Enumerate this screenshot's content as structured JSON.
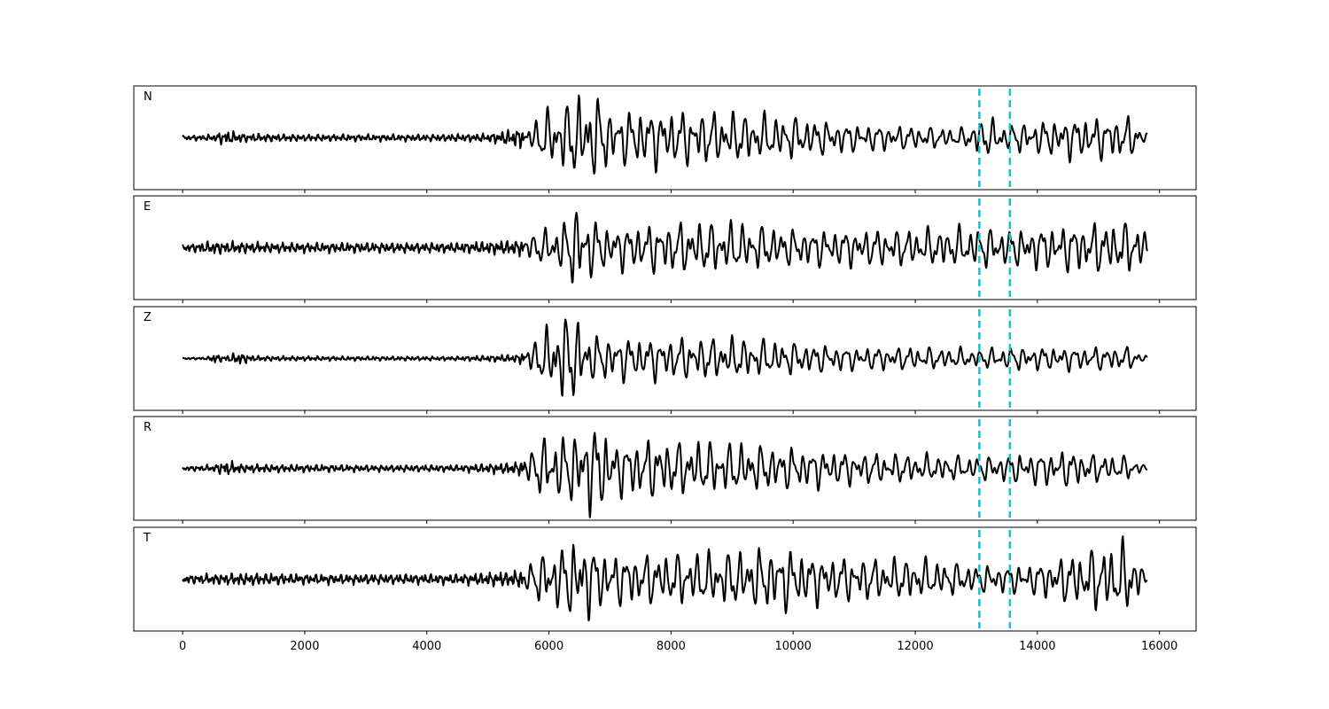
{
  "chart_data": {
    "type": "line",
    "title": "",
    "xlabel": "",
    "ylabel": "",
    "xlim": [
      -800,
      16600
    ],
    "x_ticks": [
      0,
      2000,
      4000,
      6000,
      8000,
      10000,
      12000,
      14000,
      16000
    ],
    "x_tick_labels": [
      "0",
      "2000",
      "4000",
      "6000",
      "8000",
      "10000",
      "12000",
      "14000",
      "16000"
    ],
    "ylim": [
      -1.15,
      1.15
    ],
    "grid": false,
    "trace_color": "#000000",
    "marker_color": "#17becf",
    "marker_lines_x": [
      13050,
      13550
    ],
    "sample_range": [
      0,
      15800
    ],
    "panels": [
      {
        "label": "N",
        "phase": 0.3,
        "envelope": [
          [
            0,
            0.05
          ],
          [
            500,
            0.08
          ],
          [
            700,
            0.18
          ],
          [
            1000,
            0.1
          ],
          [
            2000,
            0.08
          ],
          [
            3000,
            0.08
          ],
          [
            4000,
            0.08
          ],
          [
            5000,
            0.1
          ],
          [
            5700,
            0.28
          ],
          [
            5950,
            0.6
          ],
          [
            6200,
            0.7
          ],
          [
            6450,
            0.9
          ],
          [
            6650,
            0.95
          ],
          [
            6850,
            0.85
          ],
          [
            7100,
            0.5
          ],
          [
            7400,
            0.65
          ],
          [
            8000,
            0.6
          ],
          [
            9000,
            0.55
          ],
          [
            10000,
            0.45
          ],
          [
            11000,
            0.3
          ],
          [
            12000,
            0.25
          ],
          [
            12800,
            0.2
          ],
          [
            13100,
            0.45
          ],
          [
            13500,
            0.3
          ],
          [
            14000,
            0.35
          ],
          [
            14500,
            0.45
          ],
          [
            15000,
            0.45
          ],
          [
            15500,
            0.45
          ],
          [
            15800,
            0.1
          ]
        ]
      },
      {
        "label": "E",
        "phase": 1.7,
        "envelope": [
          [
            0,
            0.08
          ],
          [
            500,
            0.15
          ],
          [
            1500,
            0.12
          ],
          [
            3000,
            0.12
          ],
          [
            4500,
            0.12
          ],
          [
            5500,
            0.18
          ],
          [
            5950,
            0.4
          ],
          [
            6300,
            0.6
          ],
          [
            6450,
            1.0
          ],
          [
            6600,
            0.7
          ],
          [
            7000,
            0.45
          ],
          [
            8000,
            0.55
          ],
          [
            9000,
            0.55
          ],
          [
            10000,
            0.4
          ],
          [
            11000,
            0.4
          ],
          [
            12000,
            0.4
          ],
          [
            13000,
            0.45
          ],
          [
            13500,
            0.4
          ],
          [
            14500,
            0.5
          ],
          [
            15000,
            0.55
          ],
          [
            15700,
            0.55
          ],
          [
            15800,
            0.25
          ]
        ]
      },
      {
        "label": "Z",
        "phase": 0.9,
        "envelope": [
          [
            0,
            0.02
          ],
          [
            400,
            0.03
          ],
          [
            500,
            0.12
          ],
          [
            700,
            0.06
          ],
          [
            900,
            0.15
          ],
          [
            1200,
            0.06
          ],
          [
            3000,
            0.05
          ],
          [
            4500,
            0.05
          ],
          [
            5500,
            0.1
          ],
          [
            5900,
            0.55
          ],
          [
            6200,
            1.0
          ],
          [
            6450,
            0.9
          ],
          [
            6700,
            0.5
          ],
          [
            7500,
            0.45
          ],
          [
            8000,
            0.45
          ],
          [
            9000,
            0.45
          ],
          [
            10000,
            0.35
          ],
          [
            11000,
            0.25
          ],
          [
            12000,
            0.25
          ],
          [
            13000,
            0.2
          ],
          [
            13500,
            0.25
          ],
          [
            14500,
            0.25
          ],
          [
            15500,
            0.25
          ],
          [
            15800,
            0.05
          ]
        ]
      },
      {
        "label": "R",
        "phase": 2.4,
        "envelope": [
          [
            0,
            0.05
          ],
          [
            500,
            0.08
          ],
          [
            700,
            0.18
          ],
          [
            1000,
            0.1
          ],
          [
            3000,
            0.08
          ],
          [
            4500,
            0.08
          ],
          [
            5500,
            0.15
          ],
          [
            5950,
            0.7
          ],
          [
            6300,
            0.7
          ],
          [
            6600,
            0.95
          ],
          [
            6850,
            0.95
          ],
          [
            7100,
            0.55
          ],
          [
            7500,
            0.65
          ],
          [
            8000,
            0.6
          ],
          [
            9000,
            0.55
          ],
          [
            10000,
            0.45
          ],
          [
            11000,
            0.35
          ],
          [
            12000,
            0.3
          ],
          [
            13000,
            0.25
          ],
          [
            13500,
            0.3
          ],
          [
            14500,
            0.4
          ],
          [
            15000,
            0.3
          ],
          [
            15500,
            0.25
          ],
          [
            15800,
            0.05
          ]
        ]
      },
      {
        "label": "T",
        "phase": 3.1,
        "envelope": [
          [
            0,
            0.1
          ],
          [
            1000,
            0.15
          ],
          [
            2000,
            0.12
          ],
          [
            3000,
            0.12
          ],
          [
            4500,
            0.12
          ],
          [
            5500,
            0.2
          ],
          [
            5950,
            0.6
          ],
          [
            6200,
            0.7
          ],
          [
            6500,
            0.95
          ],
          [
            6700,
            0.75
          ],
          [
            7000,
            0.55
          ],
          [
            8000,
            0.55
          ],
          [
            9000,
            0.6
          ],
          [
            9800,
            0.7
          ],
          [
            10500,
            0.5
          ],
          [
            11500,
            0.45
          ],
          [
            12000,
            0.45
          ],
          [
            13000,
            0.3
          ],
          [
            13500,
            0.3
          ],
          [
            14000,
            0.35
          ],
          [
            15000,
            0.7
          ],
          [
            15500,
            0.8
          ],
          [
            15800,
            0.1
          ]
        ]
      }
    ]
  }
}
